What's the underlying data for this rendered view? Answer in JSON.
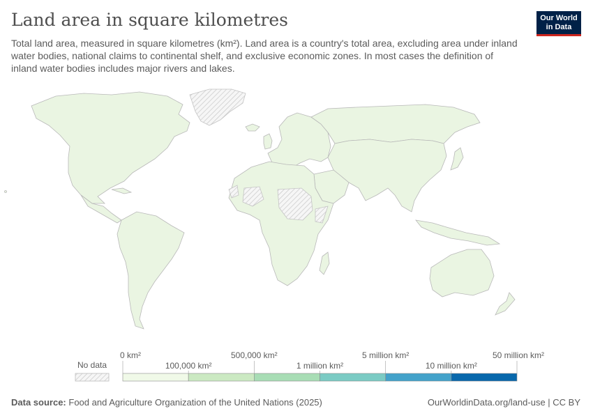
{
  "header": {
    "title": "Land area in square kilometres",
    "subtitle": "Total land area, measured in square kilometres (km²). Land area is a country's total area, excluding area under inland water bodies, national claims to continental shelf, and exclusive economic zones. In most cases the definition of inland water bodies includes major rivers and lakes."
  },
  "logo": {
    "line1": "Our World",
    "line2": "in Data"
  },
  "legend": {
    "no_data_label": "No data",
    "bins": [
      {
        "label": "0 km²",
        "color": "#f0f9e8"
      },
      {
        "label": "100,000 km²",
        "color": "#cbe9c2"
      },
      {
        "label": "500,000 km²",
        "color": "#a8ddb5"
      },
      {
        "label": "1 million km²",
        "color": "#7bcbc4"
      },
      {
        "label": "5 million km²",
        "color": "#43a2ca"
      },
      {
        "label": "10 million km²",
        "color": "#0868ac"
      }
    ],
    "max_label": "50 million km²"
  },
  "footer": {
    "source_prefix": "Data source:",
    "source_text": "Food and Agriculture Organization of the United Nations (2025)",
    "url": "OurWorldinData.org/land-use | CC BY"
  }
}
